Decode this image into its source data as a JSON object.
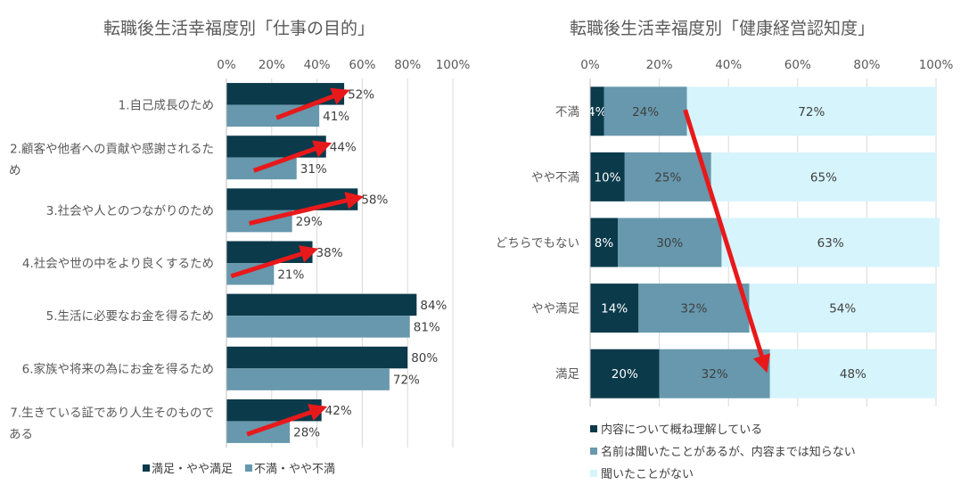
{
  "chart_data": [
    {
      "type": "bar",
      "orientation": "horizontal",
      "title": "転職後生活幸福度別「仕事の目的」",
      "categories": [
        "1.自己成長のため",
        "2.顧客や他者への貢献や感謝されるため",
        "3.社会や人とのつながりのため",
        "4.社会や世の中をより良くするため",
        "5.生活に必要なお金を得るため",
        "6.家族や将来の為にお金を得るため",
        "7.生きている証であり人生そのものである"
      ],
      "category_lines": [
        [
          "1.自己成長のため"
        ],
        [
          "2.顧客や他者への貢献や感謝されるた",
          "め"
        ],
        [
          "3.社会や人とのつながりのため"
        ],
        [
          "4.社会や世の中をより良くするため"
        ],
        [
          "5.生活に必要なお金を得るため"
        ],
        [
          "6.家族や将来の為にお金を得るため"
        ],
        [
          "7.生きている証であり人生そのもので",
          "ある"
        ]
      ],
      "series": [
        {
          "name": "満足・やや満足",
          "values": [
            52,
            44,
            58,
            38,
            84,
            80,
            42
          ],
          "color": "#0b3a4b"
        },
        {
          "name": "不満・やや不満",
          "values": [
            41,
            31,
            29,
            21,
            81,
            72,
            28
          ],
          "color": "#6798ad"
        }
      ],
      "xlim": [
        0,
        100
      ],
      "xticks": [
        "0%",
        "20%",
        "40%",
        "60%",
        "80%",
        "100%"
      ],
      "value_suffix": "%",
      "grid": true,
      "legend_position": "bottom",
      "arrow_color": "#e8191b",
      "arrow_rows": [
        0,
        1,
        2,
        3,
        6
      ]
    },
    {
      "type": "bar",
      "orientation": "horizontal",
      "stacked": true,
      "title": "転職後生活幸福度別「健康経営認知度」",
      "categories": [
        "不満",
        "やや不満",
        "どちらでもない",
        "やや満足",
        "満足"
      ],
      "series": [
        {
          "name": "内容について概ね理解している",
          "values": [
            4,
            10,
            8,
            14,
            20
          ],
          "color": "#0b3a4b"
        },
        {
          "name": "名前は聞いたことがあるが、内容までは知らない",
          "values": [
            24,
            25,
            30,
            32,
            32
          ],
          "color": "#6798ad"
        },
        {
          "name": "聞いたことがない",
          "values": [
            72,
            65,
            63,
            54,
            48
          ],
          "color": "#d6f4fb"
        }
      ],
      "xlim": [
        0,
        100
      ],
      "xticks": [
        "0%",
        "20%",
        "40%",
        "60%",
        "80%",
        "100%"
      ],
      "value_suffix": "%",
      "grid": true,
      "legend_position": "bottom",
      "arrow_color": "#e8191b"
    }
  ]
}
